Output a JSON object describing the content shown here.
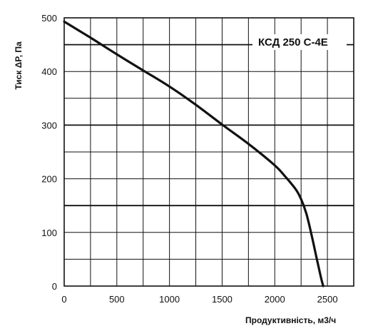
{
  "chart_data": {
    "type": "line",
    "title": "КСД 250 С-4Е",
    "xlabel": "Продуктивність, м3/ч",
    "ylabel": "Тиск ΔP, Па",
    "xlim": [
      0,
      2750
    ],
    "ylim": [
      0,
      500
    ],
    "x_ticks": [
      0,
      500,
      1000,
      1500,
      2000,
      2500
    ],
    "y_ticks": [
      0,
      100,
      200,
      300,
      400,
      500
    ],
    "x_grid_step": 250,
    "y_grid_step": 50,
    "grid": true,
    "legend": "none",
    "series": [
      {
        "x": [
          0,
          250,
          500,
          750,
          1000,
          1250,
          1500,
          1750,
          2000,
          2100,
          2200,
          2250,
          2300,
          2350,
          2400,
          2440,
          2460
        ],
        "y": [
          493,
          463,
          432,
          402,
          372,
          338,
          301,
          265,
          225,
          204,
          180,
          162,
          135,
          95,
          50,
          15,
          0
        ]
      }
    ]
  }
}
